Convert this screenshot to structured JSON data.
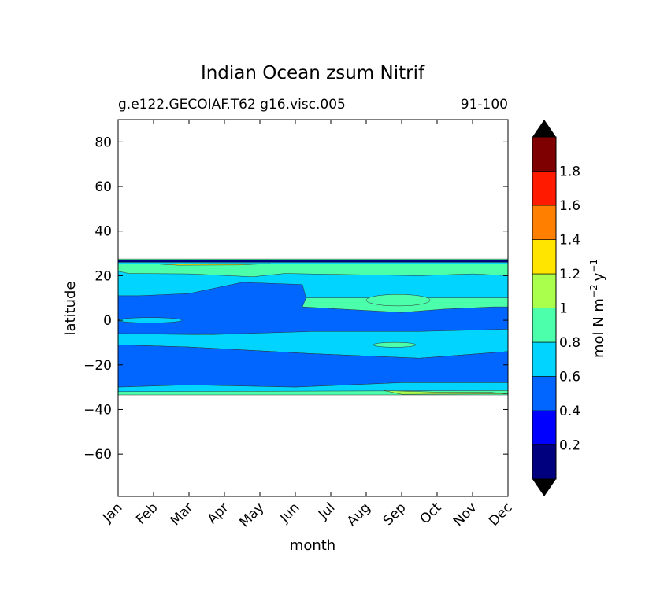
{
  "chart_data": {
    "type": "heatmap",
    "title": "Indian Ocean zsum Nitrif",
    "subtitle_left": "g.e122.GECOIAF.T62 g16.visc.005",
    "subtitle_right": "91-100",
    "xlabel": "month",
    "ylabel": "latitude",
    "x_ticks": [
      "Jan",
      "Feb",
      "Mar",
      "Apr",
      "May",
      "Jun",
      "Jul",
      "Aug",
      "Sep",
      "Oct",
      "Nov",
      "Dec"
    ],
    "y_ticks": [
      80,
      60,
      40,
      20,
      0,
      -20,
      -40,
      -60
    ],
    "xlim": [
      1,
      12
    ],
    "ylim": [
      -79,
      90
    ],
    "colorbar": {
      "label": "mol N m^-2 y^-1",
      "label_main": "mol N m",
      "label_exp1": "−2",
      "label_unit2": "y",
      "label_exp2": "−1",
      "levels": [
        0,
        0.2,
        0.4,
        0.6,
        0.8,
        1.0,
        1.2,
        1.4,
        1.6,
        1.8,
        2.0
      ],
      "tick_labels": [
        "0.2",
        "0.4",
        "0.6",
        "0.8",
        "1",
        "1.2",
        "1.4",
        "1.6",
        "1.8"
      ],
      "colors": [
        "#00007f",
        "#0000ff",
        "#0066ff",
        "#00d4ff",
        "#4cffaa",
        "#aaff4c",
        "#ffe500",
        "#ff7f00",
        "#ff1a00",
        "#7f0000"
      ],
      "extend": "both",
      "under_color": "#000000",
      "over_color": "#000000"
    },
    "data_lat_range": [
      -33,
      27
    ],
    "approx_field": [
      {
        "lat_range": [
          26,
          27
        ],
        "level_band": "0-0.2",
        "months": "Jan-Dec"
      },
      {
        "lat_range": [
          20,
          26
        ],
        "level_band": "0.8-1.0",
        "months": "Jan-Dec"
      },
      {
        "lat_range": [
          10,
          20
        ],
        "level_band": "0.6-0.8",
        "months": "Jan-Dec"
      },
      {
        "lat_range": [
          -6,
          10
        ],
        "level_band": "0.4-0.6",
        "months": "Jan-Dec, lighter 0.6-0.8 Jul-Oct"
      },
      {
        "lat_range": [
          -12,
          -6
        ],
        "level_band": "0.6-0.8",
        "months": "Jan-Dec"
      },
      {
        "lat_range": [
          -29,
          -12
        ],
        "level_band": "0.4-0.6",
        "months": "Jan-Dec"
      },
      {
        "lat_range": [
          -33,
          -29
        ],
        "level_band": "0.6-1.0",
        "months": "Jan-Dec"
      }
    ]
  }
}
